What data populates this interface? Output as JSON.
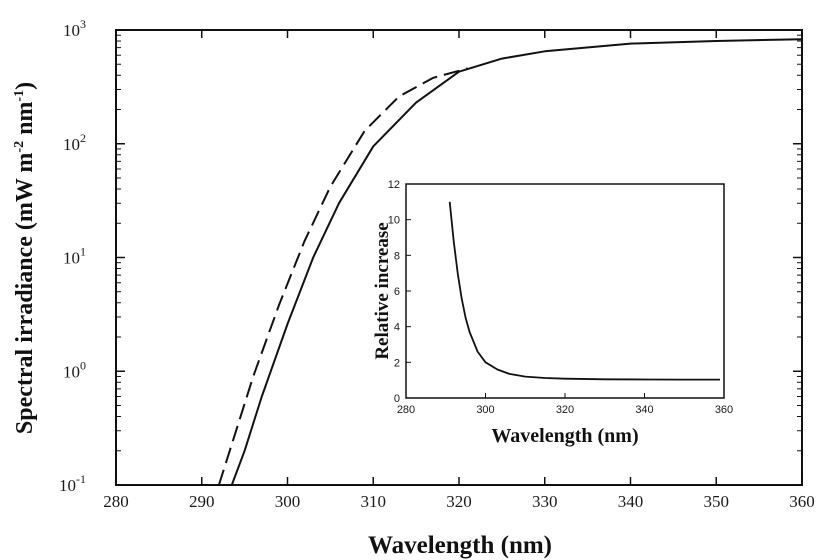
{
  "chart_data": [
    {
      "type": "line",
      "title": "",
      "xlabel": "Wavelength (nm)",
      "ylabel_parts": [
        "Spectral irradiance (mW m",
        "-2",
        " nm",
        "-1",
        ")"
      ],
      "xlim": [
        280,
        360
      ],
      "ylim": [
        0.1,
        1000
      ],
      "yscale": "log",
      "x_ticks": [
        "280",
        "290",
        "300",
        "310",
        "320",
        "330",
        "340",
        "350",
        "360"
      ],
      "y_ticks": [
        {
          "base": "10",
          "exp": "-1"
        },
        {
          "base": "10",
          "exp": "0"
        },
        {
          "base": "10",
          "exp": "1"
        },
        {
          "base": "10",
          "exp": "2"
        },
        {
          "base": "10",
          "exp": "3"
        }
      ],
      "grid": false,
      "series": [
        {
          "style": "solid",
          "x": [
            293.5,
            295,
            297,
            300,
            303,
            306,
            310,
            315,
            320,
            325,
            330,
            340,
            350,
            360
          ],
          "y": [
            0.1,
            0.2,
            0.6,
            2.6,
            10,
            30,
            95,
            230,
            430,
            560,
            650,
            760,
            800,
            830
          ]
        },
        {
          "style": "dashed",
          "x": [
            292,
            294,
            296,
            299,
            302,
            305,
            309,
            313,
            317,
            321
          ],
          "y": [
            0.1,
            0.3,
            0.9,
            3.8,
            14,
            42,
            130,
            260,
            380,
            460
          ]
        }
      ]
    },
    {
      "type": "line",
      "title": "",
      "xlabel": "Wavelength (nm)",
      "ylabel": "Relative increase",
      "xlim": [
        280,
        360
      ],
      "ylim": [
        0,
        12
      ],
      "x_ticks": [
        "280",
        "300",
        "320",
        "340",
        "360"
      ],
      "y_ticks": [
        "0",
        "2",
        "4",
        "6",
        "8",
        "10",
        "12"
      ],
      "grid": false,
      "series": [
        {
          "style": "solid",
          "x": [
            291,
            292,
            293,
            294,
            295,
            296,
            298,
            300,
            303,
            306,
            310,
            315,
            320,
            330,
            340,
            350,
            359
          ],
          "y": [
            11,
            8.8,
            7.0,
            5.6,
            4.5,
            3.7,
            2.6,
            2.0,
            1.6,
            1.35,
            1.2,
            1.12,
            1.08,
            1.05,
            1.04,
            1.03,
            1.03
          ]
        }
      ]
    }
  ]
}
